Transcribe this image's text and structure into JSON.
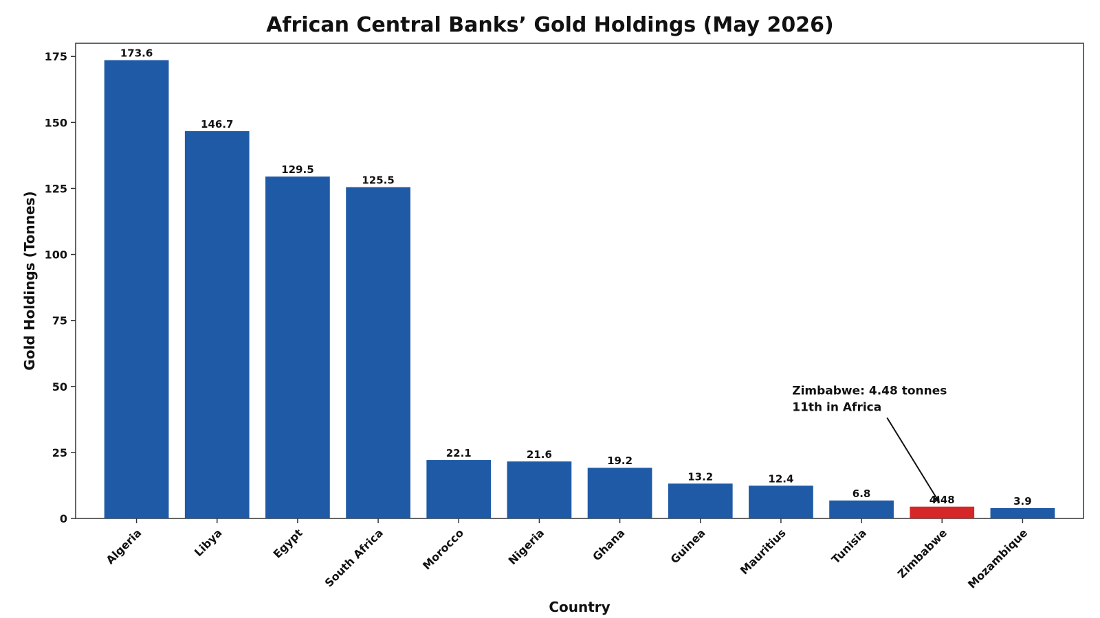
{
  "chart_data": {
    "type": "bar",
    "title": "African Central Banks’ Gold Holdings (May 2026)",
    "xlabel": "Country",
    "ylabel": "Gold Holdings (Tonnes)",
    "ylim": [
      0,
      180
    ],
    "yticks": [
      0,
      25,
      50,
      75,
      100,
      125,
      150,
      175
    ],
    "categories": [
      "Algeria",
      "Libya",
      "Egypt",
      "South Africa",
      "Morocco",
      "Nigeria",
      "Ghana",
      "Guinea",
      "Mauritius",
      "Tunisia",
      "Zimbabwe",
      "Mozambique"
    ],
    "values": [
      173.6,
      146.7,
      129.5,
      125.5,
      22.1,
      21.6,
      19.2,
      13.2,
      12.4,
      6.8,
      4.48,
      3.9
    ],
    "value_labels": [
      "173.6",
      "146.7",
      "129.5",
      "125.5",
      "22.1",
      "21.6",
      "19.2",
      "13.2",
      "12.4",
      "6.8",
      "4.48",
      "3.9"
    ],
    "grid": false,
    "colors": {
      "default": "#1f5aa6",
      "highlight": "#d62728"
    },
    "highlight_category": "Zimbabwe",
    "annotation": {
      "lines": [
        "Zimbabwe: 4.48 tonnes",
        "11th in Africa"
      ],
      "target_category": "Zimbabwe",
      "text_anchor_value": 47
    }
  }
}
